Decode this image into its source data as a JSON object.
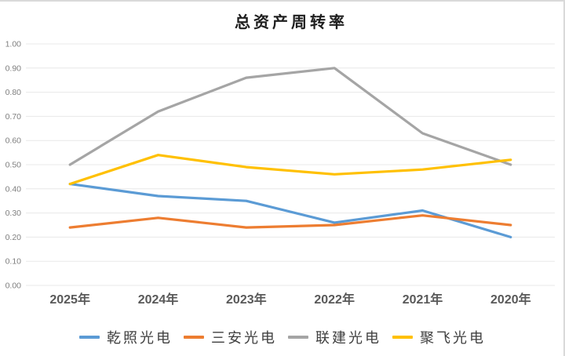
{
  "title": "总资产周转率",
  "theme": {
    "background": "#ffffff",
    "border": "#d9d9d9",
    "gridline": "#e8e8e8",
    "y_tick_color": "#7f7f7f",
    "x_tick_color": "#595959",
    "title_color": "#1f1f1f",
    "legend_text_color": "#3f3f3f"
  },
  "chart_data": {
    "type": "line",
    "title": "总资产周转率",
    "xlabel": "",
    "ylabel": "",
    "categories": [
      "2025年",
      "2024年",
      "2023年",
      "2022年",
      "2021年",
      "2020年"
    ],
    "series": [
      {
        "name": "乾照光电",
        "color": "#5b9bd5",
        "values": [
          0.42,
          0.37,
          0.35,
          0.26,
          0.31,
          0.2
        ]
      },
      {
        "name": "三安光电",
        "color": "#ed7d31",
        "values": [
          0.24,
          0.28,
          0.24,
          0.25,
          0.29,
          0.25
        ]
      },
      {
        "name": "联建光电",
        "color": "#a5a5a5",
        "values": [
          0.5,
          0.72,
          0.86,
          0.9,
          0.63,
          0.5
        ]
      },
      {
        "name": "聚飞光电",
        "color": "#ffc000",
        "values": [
          0.42,
          0.54,
          0.49,
          0.46,
          0.48,
          0.52
        ]
      }
    ],
    "ylim": [
      0.0,
      1.0
    ],
    "ytick_step": 0.1,
    "ytick_decimals": 2,
    "grid": true,
    "markers": false,
    "legend_position": "bottom"
  }
}
